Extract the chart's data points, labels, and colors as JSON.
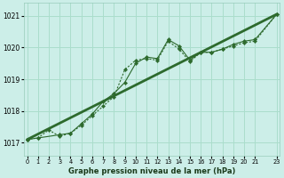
{
  "title": "Graphe pression niveau de la mer (hPa)",
  "bg_color": "#cceee8",
  "grid_color": "#aaddcc",
  "line_color": "#2d6a2d",
  "xlim": [
    -0.3,
    23.3
  ],
  "ylim": [
    1016.6,
    1021.4
  ],
  "yticks": [
    1017,
    1018,
    1019,
    1020,
    1021
  ],
  "xticks": [
    0,
    1,
    2,
    3,
    4,
    5,
    6,
    7,
    8,
    9,
    10,
    11,
    12,
    13,
    14,
    15,
    16,
    17,
    18,
    19,
    20,
    21,
    23
  ],
  "xtick_labels": [
    "0",
    "1",
    "2",
    "3",
    "4",
    "5",
    "6",
    "7",
    "8",
    "9",
    "10",
    "11",
    "12",
    "13",
    "14",
    "15",
    "16",
    "17",
    "18",
    "19",
    "20",
    "21",
    "23"
  ],
  "series_dotted_x": [
    0,
    1,
    2,
    3,
    4,
    5,
    6,
    7,
    8,
    9,
    10,
    11,
    12,
    13,
    14,
    15,
    16,
    17,
    18,
    19,
    20,
    21,
    23
  ],
  "series_dotted_y": [
    1017.1,
    1017.15,
    1017.4,
    1017.2,
    1017.3,
    1017.55,
    1017.85,
    1018.15,
    1018.45,
    1019.3,
    1019.6,
    1019.65,
    1019.6,
    1020.2,
    1019.95,
    1019.55,
    1019.85,
    1019.85,
    1019.95,
    1020.05,
    1020.15,
    1020.2,
    1021.05
  ],
  "series_solid_x": [
    0,
    1,
    3,
    4,
    5,
    6,
    7,
    8,
    9,
    10,
    11,
    12,
    13,
    14,
    15,
    16,
    17,
    18,
    19,
    20,
    21,
    23
  ],
  "series_solid_y": [
    1017.1,
    1017.15,
    1017.25,
    1017.3,
    1017.6,
    1017.9,
    1018.3,
    1018.55,
    1018.9,
    1019.5,
    1019.7,
    1019.65,
    1020.25,
    1020.05,
    1019.6,
    1019.85,
    1019.85,
    1019.95,
    1020.1,
    1020.2,
    1020.25,
    1021.05
  ],
  "series_line_x": [
    0,
    23
  ],
  "series_line_y": [
    1017.1,
    1021.05
  ]
}
